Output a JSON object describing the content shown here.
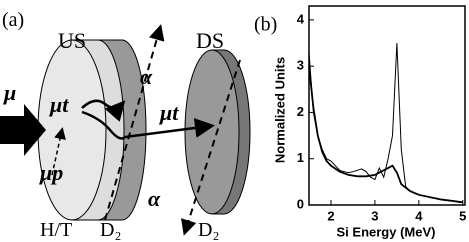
{
  "diagram": {
    "panel_label": "(a)",
    "labels": {
      "us": "US",
      "ds": "DS",
      "muon": "μ",
      "mut_left": "μt",
      "mup": "μp",
      "mut_right": "μt",
      "alpha_up": "α",
      "alpha_down": "α",
      "ht": "H/T",
      "d2_us": "D₂",
      "d2_ds": "D₂"
    }
  },
  "chart_data": {
    "type": "line",
    "panel_label": "(b)",
    "ylabel": "Normalized Units",
    "xlabel": "Si Energy (MeV)",
    "xlim": [
      1.5,
      5.05
    ],
    "ylim": [
      0,
      4.3
    ],
    "xticks": [
      2,
      3,
      4,
      5
    ],
    "yticks": [
      0,
      1,
      2,
      3,
      4
    ],
    "series": [
      {
        "color": "#000000",
        "x": [
          1.5,
          1.6,
          1.7,
          1.8,
          1.9,
          2.0,
          2.1,
          2.2,
          2.3,
          2.4,
          2.5,
          2.6,
          2.7,
          2.8,
          2.9,
          3.0,
          3.1,
          3.2,
          3.3,
          3.4,
          3.5,
          3.6,
          3.7,
          3.8,
          3.9,
          4.0,
          4.1,
          4.2,
          4.3,
          4.4,
          4.5,
          4.6,
          4.7,
          4.8,
          4.9,
          5.0
        ],
        "values": [
          3.3,
          2.0,
          1.5,
          1.2,
          1.0,
          0.95,
          0.85,
          0.75,
          0.72,
          0.7,
          0.72,
          0.75,
          0.78,
          0.72,
          0.6,
          0.55,
          0.8,
          0.6,
          1.0,
          1.5,
          3.5,
          1.2,
          0.4,
          0.3,
          0.25,
          0.22,
          0.2,
          0.18,
          0.15,
          0.15,
          0.12,
          0.1,
          0.1,
          0.08,
          0.06,
          0.05
        ]
      },
      {
        "color": "#000000",
        "x": [
          1.5,
          1.6,
          1.7,
          1.8,
          1.9,
          2.0,
          2.2,
          2.4,
          2.6,
          2.8,
          3.0,
          3.2,
          3.4,
          3.5,
          3.6,
          3.8,
          4.0,
          4.5,
          5.0
        ],
        "values": [
          3.0,
          2.1,
          1.5,
          1.15,
          0.95,
          0.85,
          0.72,
          0.65,
          0.62,
          0.62,
          0.65,
          0.75,
          0.85,
          0.7,
          0.45,
          0.3,
          0.22,
          0.12,
          0.06
        ]
      }
    ]
  }
}
